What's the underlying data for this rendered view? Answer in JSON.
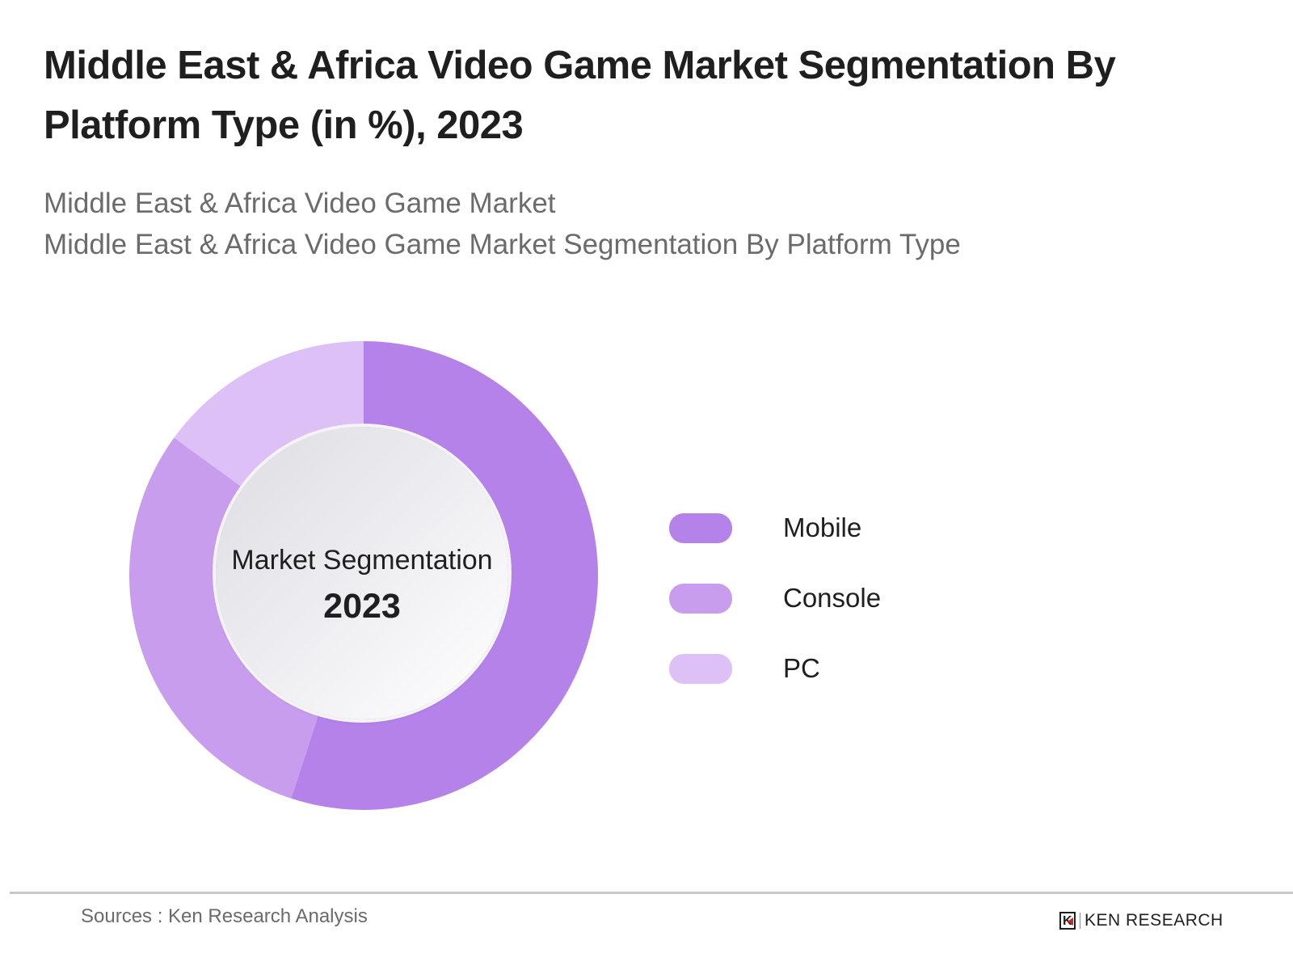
{
  "header": {
    "title": "Middle East & Africa Video Game Market Segmentation By Platform Type (in %), 2023",
    "subtitle_lines": [
      "Middle East & Africa Video Game Market",
      "Middle East & Africa Video Game Market Segmentation By Platform Type"
    ]
  },
  "center": {
    "label": "Market Segmentation",
    "year": "2023"
  },
  "legend": [
    {
      "label": "Mobile",
      "color": "#b582ea"
    },
    {
      "label": "Console",
      "color": "#c89ded"
    },
    {
      "label": "PC",
      "color": "#dcc0f6"
    }
  ],
  "footer": {
    "source": "Sources : Ken Research Analysis",
    "logo_text": "KEN RESEARCH",
    "logo_mark": "K"
  },
  "chart_data": {
    "type": "pie",
    "variant": "donut",
    "title": "Middle East & Africa Video Game Market Segmentation By Platform Type (in %), 2023",
    "subtitle": "Middle East & Africa Video Game Market Segmentation By Platform Type",
    "center_text": "Market Segmentation 2023",
    "categories": [
      "Mobile",
      "Console",
      "PC"
    ],
    "values": [
      55,
      30,
      15
    ],
    "unit": "%",
    "colors": [
      "#b582ea",
      "#c89ded",
      "#dcc0f6"
    ],
    "start_angle": "12 o'clock, clockwise",
    "legend_position": "right",
    "data_labels_shown": false
  }
}
